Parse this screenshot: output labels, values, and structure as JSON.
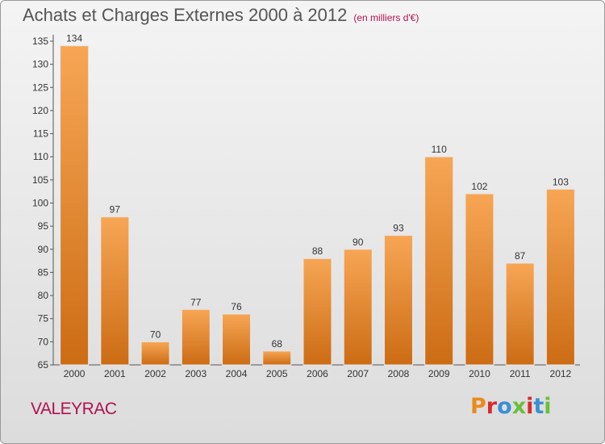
{
  "page": {
    "title": "Achats et Charges Externes 2000 à 2012",
    "subtitle": "(en milliers d'€)",
    "commune": "VALEYRAC",
    "brand": "Proxiti",
    "brand_colors": [
      "#e98b1c",
      "#d62b2b",
      "#3a8fd6",
      "#6cbf3a",
      "#d62b2b",
      "#3a8fd6",
      "#6cbf3a"
    ]
  },
  "chart_data": {
    "type": "bar",
    "title": "Achats et Charges Externes 2000 à 2012",
    "subtitle": "(en milliers d'€)",
    "categories": [
      "2000",
      "2001",
      "2002",
      "2003",
      "2004",
      "2005",
      "2006",
      "2007",
      "2008",
      "2009",
      "2010",
      "2011",
      "2012"
    ],
    "values": [
      134,
      97,
      70,
      77,
      76,
      68,
      88,
      90,
      93,
      110,
      102,
      87,
      103
    ],
    "ylim": [
      65,
      135
    ],
    "yticks": [
      65,
      70,
      75,
      80,
      85,
      90,
      95,
      100,
      105,
      110,
      115,
      120,
      125,
      130,
      135
    ],
    "grid": false,
    "bar_color_top": "#f7a655",
    "bar_color_bottom": "#cc6c14"
  }
}
